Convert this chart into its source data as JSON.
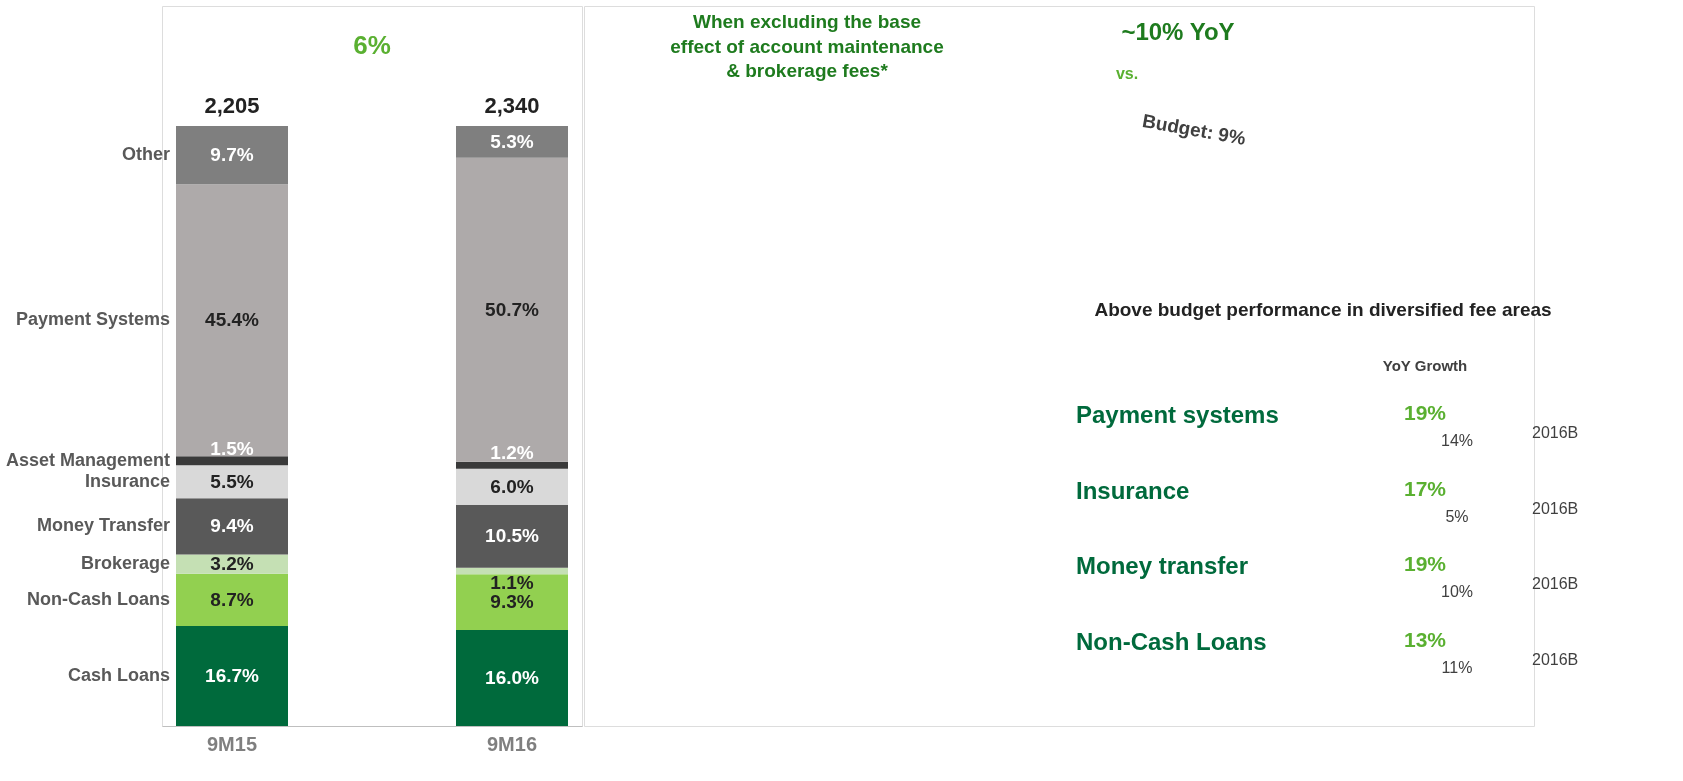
{
  "chart_data": {
    "type": "bar",
    "stacked": true,
    "categories": [
      "9M15",
      "9M16"
    ],
    "legend": "left",
    "tick_labels": "x",
    "series": [
      {
        "name": "Cash Loans",
        "color": "#006a3c",
        "values": [
          16.7,
          16.0
        ],
        "value_labels": [
          "16.7%",
          "16.0%"
        ]
      },
      {
        "name": "Non-Cash Loans",
        "color": "#92d050",
        "values": [
          8.7,
          9.3
        ],
        "value_labels": [
          "8.7%",
          "9.3%"
        ]
      },
      {
        "name": "Brokerage",
        "color": "#c5e0b4",
        "values": [
          3.2,
          1.1
        ],
        "value_labels": [
          "3.2%",
          "1.1%"
        ]
      },
      {
        "name": "Money Transfer",
        "color": "#595959",
        "values": [
          9.4,
          10.5
        ],
        "value_labels": [
          "9.4%",
          "10.5%"
        ]
      },
      {
        "name": "Insurance",
        "color": "#d9d9d9",
        "values": [
          5.5,
          6.0
        ],
        "value_labels": [
          "5.5%",
          "6.0%"
        ]
      },
      {
        "name": "Asset Management",
        "color": "#3a3a3a",
        "values": [
          1.5,
          1.2
        ],
        "value_labels": [
          "1.5%",
          "1.2%"
        ]
      },
      {
        "name": "Payment Systems",
        "color": "#aeaaaa",
        "values": [
          45.4,
          50.7
        ],
        "value_labels": [
          "45.4%",
          "50.7%"
        ]
      },
      {
        "name": "Other",
        "color": "#7f7f7f",
        "values": [
          9.7,
          5.3
        ],
        "value_labels": [
          "9.7%",
          "5.3%"
        ]
      }
    ],
    "annotations": [
      {
        "text": "2,205",
        "x": "9M15",
        "y": 100.1
      },
      {
        "text": "2,340",
        "x": "9M16",
        "y": 100.1
      },
      "6%",
      "When excluding the base\neffect of account maintenance\n& brokerage fees*",
      "~10% YoY",
      "vs.",
      "Budget: 9%",
      "Above budget performance in diversified fee areas",
      "YoY Growth",
      "Payment systems",
      "19%",
      "14%",
      "2016B",
      "Insurance",
      "17%",
      "5%",
      "2016B",
      "Money transfer",
      "19%",
      "10%",
      "2016B",
      "Non-Cash Loans",
      "13%",
      "11%",
      "2016B"
    ]
  }
}
